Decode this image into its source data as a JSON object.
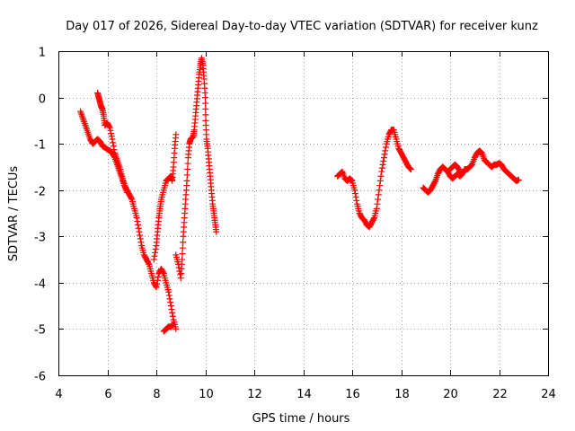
{
  "chart_data": {
    "type": "scatter",
    "title": "Day 017 of 2026, Sidereal Day-to-day VTEC variation (SDTVAR) for receiver kunz",
    "xlabel": "GPS time / hours",
    "ylabel": "SDTVAR / TECUs",
    "xlim": [
      4,
      24
    ],
    "ylim": [
      -6,
      1
    ],
    "xticks": [
      4,
      6,
      8,
      10,
      12,
      14,
      16,
      18,
      20,
      22,
      24
    ],
    "yticks": [
      -6,
      -5,
      -4,
      -3,
      -2,
      -1,
      0,
      1
    ],
    "grid": true,
    "marker": "plus",
    "color": "#ff0000",
    "series": [
      {
        "name": "SDTVAR",
        "segments": [
          [
            [
              4.9,
              -0.3
            ],
            [
              5.0,
              -0.45
            ],
            [
              5.1,
              -0.6
            ],
            [
              5.2,
              -0.75
            ],
            [
              5.3,
              -0.9
            ],
            [
              5.4,
              -1.0
            ],
            [
              5.5,
              -0.95
            ],
            [
              5.6,
              -0.9
            ],
            [
              5.7,
              -0.95
            ],
            [
              5.8,
              -1.05
            ],
            [
              5.9,
              -1.08
            ],
            [
              6.0,
              -1.12
            ],
            [
              6.1,
              -1.15
            ],
            [
              6.2,
              -1.2
            ],
            [
              6.3,
              -1.3
            ],
            [
              6.4,
              -1.45
            ],
            [
              6.5,
              -1.6
            ],
            [
              6.6,
              -1.75
            ],
            [
              6.7,
              -1.9
            ],
            [
              6.8,
              -2.0
            ],
            [
              6.9,
              -2.1
            ],
            [
              7.0,
              -2.2
            ],
            [
              7.1,
              -2.4
            ],
            [
              7.2,
              -2.6
            ],
            [
              7.3,
              -2.9
            ],
            [
              7.4,
              -3.2
            ],
            [
              7.5,
              -3.4
            ],
            [
              7.6,
              -3.5
            ],
            [
              7.7,
              -3.6
            ],
            [
              7.8,
              -3.8
            ],
            [
              7.9,
              -4.0
            ],
            [
              8.0,
              -4.1
            ],
            [
              8.1,
              -3.8
            ],
            [
              8.2,
              -3.7
            ],
            [
              8.3,
              -3.8
            ],
            [
              8.4,
              -4.0
            ],
            [
              8.5,
              -4.2
            ],
            [
              8.6,
              -4.5
            ],
            [
              8.7,
              -4.8
            ],
            [
              8.8,
              -5.0
            ]
          ],
          [
            [
              5.6,
              0.1
            ],
            [
              5.65,
              0.0
            ],
            [
              5.7,
              -0.1
            ],
            [
              5.75,
              -0.2
            ],
            [
              5.8,
              -0.25
            ],
            [
              5.85,
              -0.4
            ],
            [
              5.9,
              -0.6
            ],
            [
              6.0,
              -0.55
            ],
            [
              6.1,
              -0.65
            ],
            [
              6.2,
              -0.9
            ],
            [
              6.3,
              -1.2
            ],
            [
              6.4,
              -1.35
            ],
            [
              6.5,
              -1.5
            ],
            [
              6.6,
              -1.7
            ],
            [
              6.7,
              -1.9
            ],
            [
              6.8,
              -2.05
            ]
          ],
          [
            [
              8.3,
              -5.05
            ],
            [
              8.4,
              -5.0
            ],
            [
              8.5,
              -4.95
            ],
            [
              8.6,
              -4.95
            ],
            [
              8.7,
              -4.9
            ]
          ],
          [
            [
              7.9,
              -3.5
            ],
            [
              8.0,
              -3.2
            ],
            [
              8.05,
              -2.9
            ],
            [
              8.1,
              -2.6
            ],
            [
              8.15,
              -2.4
            ],
            [
              8.2,
              -2.2
            ],
            [
              8.3,
              -2.0
            ],
            [
              8.4,
              -1.8
            ],
            [
              8.5,
              -1.75
            ],
            [
              8.6,
              -1.7
            ],
            [
              8.65,
              -1.8
            ],
            [
              8.7,
              -1.5
            ],
            [
              8.75,
              -1.1
            ],
            [
              8.8,
              -0.8
            ]
          ],
          [
            [
              8.8,
              -3.4
            ],
            [
              8.9,
              -3.6
            ],
            [
              9.0,
              -3.9
            ],
            [
              9.05,
              -3.5
            ],
            [
              9.1,
              -3.0
            ],
            [
              9.15,
              -2.6
            ],
            [
              9.2,
              -2.2
            ],
            [
              9.25,
              -1.8
            ],
            [
              9.3,
              -1.3
            ],
            [
              9.35,
              -1.0
            ],
            [
              9.4,
              -0.9
            ],
            [
              9.5,
              -0.85
            ],
            [
              9.55,
              -0.7
            ],
            [
              9.6,
              -0.4
            ],
            [
              9.65,
              -0.1
            ],
            [
              9.7,
              0.2
            ],
            [
              9.75,
              0.5
            ],
            [
              9.8,
              0.7
            ],
            [
              9.85,
              0.85
            ],
            [
              9.9,
              0.7
            ],
            [
              9.95,
              0.4
            ],
            [
              10.0,
              0.0
            ],
            [
              10.02,
              -0.5
            ],
            [
              10.05,
              -0.9
            ],
            [
              10.1,
              -1.1
            ],
            [
              10.15,
              -1.4
            ],
            [
              10.2,
              -1.7
            ],
            [
              10.25,
              -2.0
            ],
            [
              10.3,
              -2.3
            ],
            [
              10.35,
              -2.5
            ],
            [
              10.4,
              -2.7
            ],
            [
              10.45,
              -2.9
            ]
          ],
          [
            [
              15.4,
              -1.7
            ],
            [
              15.5,
              -1.65
            ],
            [
              15.6,
              -1.6
            ],
            [
              15.7,
              -1.75
            ],
            [
              15.8,
              -1.8
            ],
            [
              15.9,
              -1.75
            ],
            [
              16.0,
              -1.8
            ],
            [
              16.1,
              -2.0
            ],
            [
              16.2,
              -2.3
            ],
            [
              16.3,
              -2.5
            ],
            [
              16.4,
              -2.6
            ],
            [
              16.5,
              -2.65
            ],
            [
              16.6,
              -2.75
            ],
            [
              16.7,
              -2.8
            ],
            [
              16.8,
              -2.7
            ],
            [
              16.9,
              -2.6
            ],
            [
              17.0,
              -2.4
            ],
            [
              17.1,
              -2.0
            ],
            [
              17.2,
              -1.6
            ],
            [
              17.3,
              -1.3
            ],
            [
              17.4,
              -1.0
            ],
            [
              17.5,
              -0.8
            ],
            [
              17.6,
              -0.7
            ],
            [
              17.7,
              -0.7
            ],
            [
              17.8,
              -0.9
            ],
            [
              17.9,
              -1.1
            ],
            [
              18.0,
              -1.2
            ],
            [
              18.1,
              -1.3
            ],
            [
              18.2,
              -1.4
            ],
            [
              18.3,
              -1.5
            ],
            [
              18.4,
              -1.55
            ]
          ],
          [
            [
              18.9,
              -1.95
            ],
            [
              19.0,
              -2.0
            ],
            [
              19.1,
              -2.05
            ],
            [
              19.2,
              -2.0
            ],
            [
              19.3,
              -1.9
            ],
            [
              19.4,
              -1.8
            ],
            [
              19.5,
              -1.65
            ],
            [
              19.6,
              -1.55
            ],
            [
              19.7,
              -1.5
            ],
            [
              19.8,
              -1.55
            ],
            [
              19.9,
              -1.6
            ],
            [
              20.0,
              -1.7
            ],
            [
              20.1,
              -1.75
            ],
            [
              20.2,
              -1.7
            ],
            [
              20.3,
              -1.65
            ],
            [
              20.4,
              -1.7
            ],
            [
              20.5,
              -1.65
            ],
            [
              20.6,
              -1.55
            ],
            [
              20.7,
              -1.55
            ],
            [
              20.8,
              -1.5
            ],
            [
              20.9,
              -1.45
            ],
            [
              21.0,
              -1.3
            ],
            [
              21.1,
              -1.2
            ],
            [
              21.2,
              -1.15
            ],
            [
              21.3,
              -1.2
            ],
            [
              21.4,
              -1.35
            ],
            [
              21.5,
              -1.4
            ],
            [
              21.6,
              -1.45
            ],
            [
              21.7,
              -1.5
            ],
            [
              21.8,
              -1.45
            ],
            [
              21.9,
              -1.45
            ],
            [
              22.0,
              -1.42
            ],
            [
              22.1,
              -1.45
            ],
            [
              22.2,
              -1.55
            ],
            [
              22.3,
              -1.6
            ],
            [
              22.4,
              -1.65
            ],
            [
              22.5,
              -1.7
            ],
            [
              22.6,
              -1.75
            ],
            [
              22.7,
              -1.8
            ],
            [
              22.8,
              -1.78
            ]
          ],
          [
            [
              20.0,
              -1.55
            ],
            [
              20.1,
              -1.5
            ],
            [
              20.2,
              -1.45
            ],
            [
              20.3,
              -1.5
            ],
            [
              20.4,
              -1.6
            ]
          ]
        ]
      }
    ]
  }
}
